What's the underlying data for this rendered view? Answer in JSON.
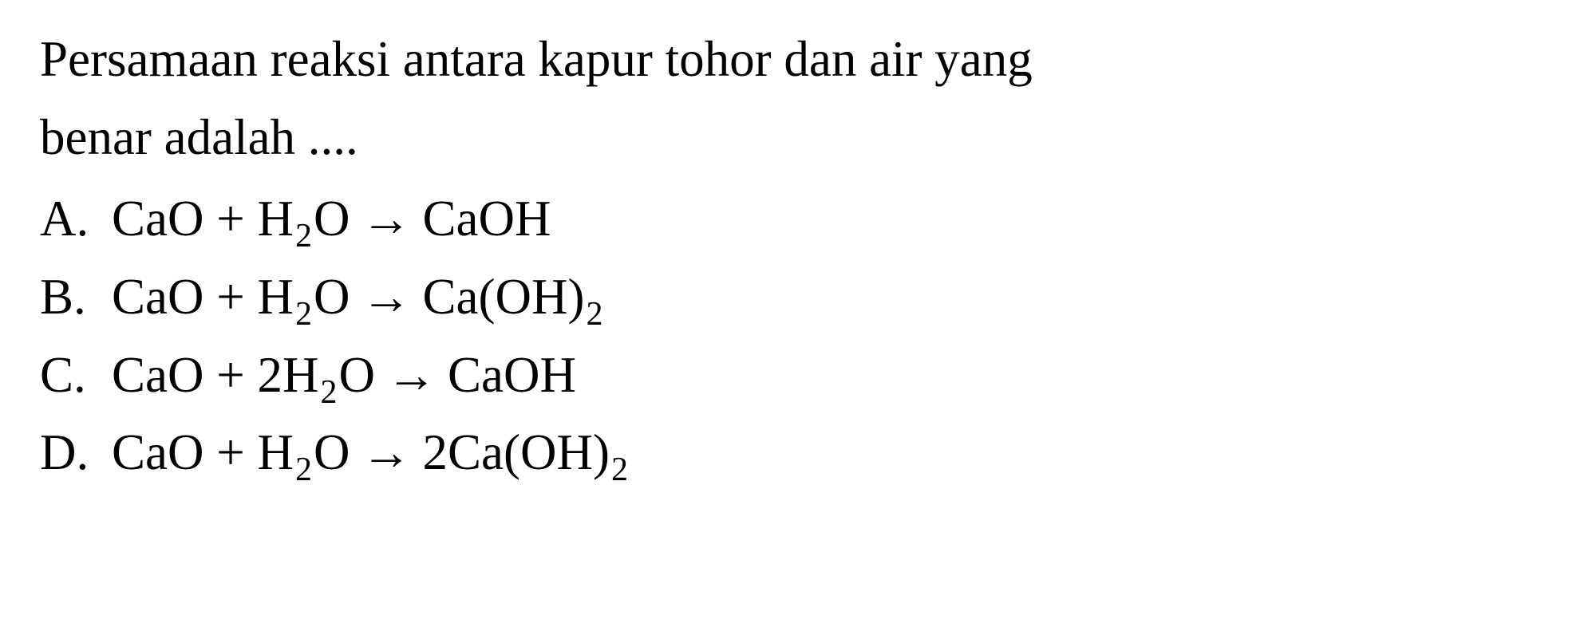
{
  "question": {
    "line1": "Persamaan reaksi antara kapur tohor dan air yang",
    "line2": "benar adalah ...."
  },
  "options": {
    "a": {
      "label": "A.",
      "left_1": "CaO + H",
      "left_sub1": "2",
      "left_2": "O",
      "arrow": "→",
      "right_1": "CaOH"
    },
    "b": {
      "label": "B.",
      "left_1": "CaO + H",
      "left_sub1": "2",
      "left_2": "O",
      "arrow": "→",
      "right_1": " Ca(OH)",
      "right_sub1": "2"
    },
    "c": {
      "label": "C.",
      "left_1": "CaO + 2H",
      "left_sub1": "2",
      "left_2": "O",
      "arrow": "→",
      "right_1": "CaOH"
    },
    "d": {
      "label": "D.",
      "left_1": "CaO + H",
      "left_sub1": "2",
      "left_2": "O",
      "arrow": "→",
      "right_1": "2Ca(OH)",
      "right_sub1": "2"
    }
  },
  "styling": {
    "background_color": "#ffffff",
    "text_color": "#000000",
    "font_family": "Times New Roman",
    "question_fontsize": 63,
    "option_fontsize": 63,
    "sub_fontsize": 42,
    "line_height": 1.4,
    "option_line_height": 1.55
  }
}
